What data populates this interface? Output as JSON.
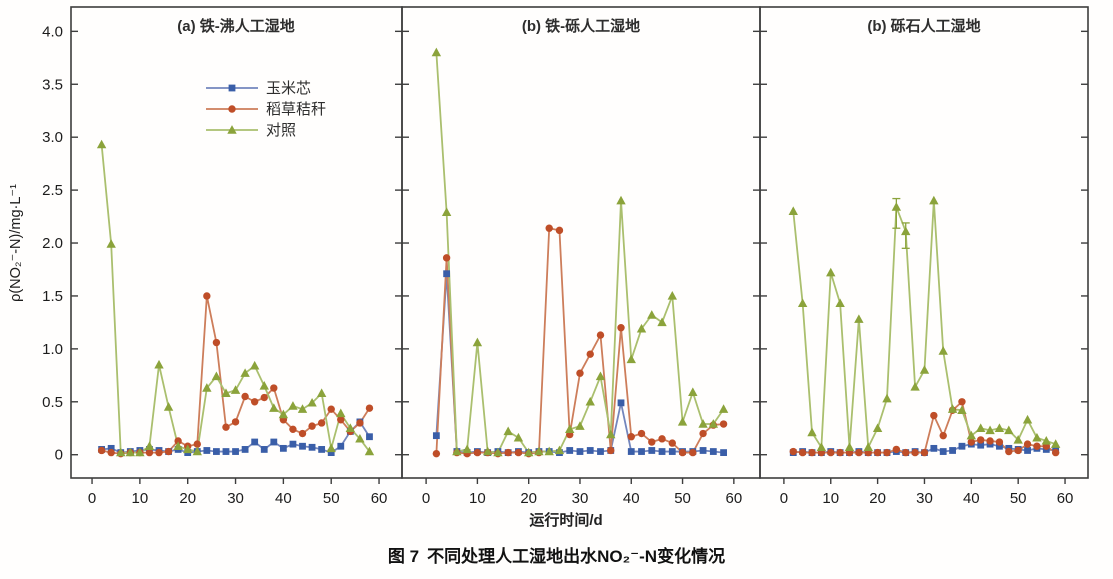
{
  "figure": {
    "x_axis_label": "运行时间/d",
    "y_axis_label": "ρ(NO₂⁻-N)/mg·L⁻¹",
    "caption": {
      "prefix": "图 7",
      "text": "不同处理人工湿地出水NO₂⁻-N变化情况",
      "prefix_color": "#4e7d3a"
    }
  },
  "legend": {
    "position": "inside-panel-a-top",
    "items": [
      {
        "label": "玉米芯",
        "marker": "square",
        "marker_color": "#3a5ea8",
        "line_color": "#7386bd"
      },
      {
        "label": "稻草秸秆",
        "marker": "circle",
        "marker_color": "#bf4e28",
        "line_color": "#cd7d5a"
      },
      {
        "label": "对照",
        "marker": "triangle",
        "marker_color": "#8ba33b",
        "line_color": "#aabf6e"
      }
    ]
  },
  "chart_data": [
    {
      "type": "line",
      "title": "(a) 铁-沸人工湿地",
      "xlabel": "运行时间/d",
      "ylabel": "ρ(NO₂⁻-N)/mg·L⁻¹",
      "xlim": [
        -4.4,
        64.8
      ],
      "ylim": [
        -0.22,
        4.23
      ],
      "x_ticks": [
        0,
        10,
        20,
        30,
        40,
        50,
        60
      ],
      "y_ticks": [
        0,
        0.5,
        1.0,
        1.5,
        2.0,
        2.5,
        3.0,
        3.5,
        4.0
      ],
      "grid": false,
      "x_days": [
        2,
        4,
        6,
        8,
        10,
        12,
        14,
        16,
        18,
        20,
        22,
        24,
        26,
        28,
        30,
        32,
        34,
        36,
        38,
        40,
        42,
        44,
        46,
        48,
        50,
        52,
        54,
        56,
        58
      ],
      "series": [
        {
          "name": "玉米芯",
          "marker": "square",
          "marker_color": "#3a5ea8",
          "line_color": "#7386bd",
          "values": [
            0.05,
            0.06,
            0.02,
            0.03,
            0.04,
            0.05,
            0.04,
            0.03,
            0.05,
            0.02,
            0.03,
            0.04,
            0.03,
            0.03,
            0.03,
            0.05,
            0.12,
            0.05,
            0.12,
            0.06,
            0.1,
            0.08,
            0.07,
            0.05,
            0.02,
            0.08,
            0.22,
            0.31,
            0.17
          ]
        },
        {
          "name": "稻草秸秆",
          "marker": "circle",
          "marker_color": "#bf4e28",
          "line_color": "#cd7d5a",
          "values": [
            0.04,
            0.02,
            0.01,
            0.02,
            0.02,
            0.02,
            0.02,
            0.03,
            0.13,
            0.08,
            0.1,
            1.5,
            1.06,
            0.26,
            0.31,
            0.55,
            0.5,
            0.54,
            0.63,
            0.33,
            0.24,
            0.2,
            0.27,
            0.3,
            0.43,
            0.33,
            0.22,
            0.3,
            0.44
          ]
        },
        {
          "name": "对照",
          "marker": "triangle",
          "marker_color": "#8ba33b",
          "line_color": "#aabf6e",
          "values": [
            2.93,
            1.99,
            0.02,
            0.02,
            0.02,
            0.08,
            0.85,
            0.45,
            0.08,
            0.05,
            0.03,
            0.63,
            0.74,
            0.58,
            0.61,
            0.77,
            0.84,
            0.65,
            0.44,
            0.38,
            0.46,
            0.43,
            0.49,
            0.58,
            0.06,
            0.39,
            0.25,
            0.15,
            0.03
          ]
        }
      ]
    },
    {
      "type": "line",
      "title": "(b) 铁-砾人工湿地",
      "xlabel": "运行时间/d",
      "ylabel": "ρ(NO₂⁻-N)/mg·L⁻¹",
      "xlim": [
        -4.7,
        65.1
      ],
      "ylim": [
        -0.22,
        4.23
      ],
      "x_ticks": [
        0,
        10,
        20,
        30,
        40,
        50,
        60
      ],
      "y_ticks": [
        0,
        0.5,
        1.0,
        1.5,
        2.0,
        2.5,
        3.0,
        3.5,
        4.0
      ],
      "grid": false,
      "x_days": [
        2,
        4,
        6,
        8,
        10,
        12,
        14,
        16,
        18,
        20,
        22,
        24,
        26,
        28,
        30,
        32,
        34,
        36,
        38,
        40,
        42,
        44,
        46,
        48,
        50,
        52,
        54,
        56,
        58
      ],
      "series": [
        {
          "name": "玉米芯",
          "marker": "square",
          "marker_color": "#3a5ea8",
          "line_color": "#7386bd",
          "values": [
            0.18,
            1.71,
            0.03,
            0.02,
            0.03,
            0.02,
            0.03,
            0.02,
            0.03,
            0.02,
            0.03,
            0.03,
            0.02,
            0.04,
            0.03,
            0.04,
            0.03,
            0.04,
            0.49,
            0.03,
            0.03,
            0.04,
            0.03,
            0.03,
            0.03,
            0.03,
            0.04,
            0.03,
            0.02
          ]
        },
        {
          "name": "稻草秸秆",
          "marker": "circle",
          "marker_color": "#bf4e28",
          "line_color": "#cd7d5a",
          "values": [
            0.01,
            1.86,
            0.02,
            0.01,
            0.02,
            0.02,
            0.01,
            0.02,
            0.02,
            0.01,
            0.02,
            2.14,
            2.12,
            0.19,
            0.77,
            0.95,
            1.13,
            0.04,
            1.2,
            0.17,
            0.2,
            0.12,
            0.15,
            0.11,
            0.02,
            0.02,
            0.2,
            0.28,
            0.29
          ]
        },
        {
          "name": "对照",
          "marker": "triangle",
          "marker_color": "#8ba33b",
          "line_color": "#aabf6e",
          "values": [
            3.8,
            2.29,
            0.03,
            0.05,
            1.06,
            0.03,
            0.02,
            0.22,
            0.16,
            0.02,
            0.03,
            0.03,
            0.04,
            0.24,
            0.27,
            0.5,
            0.74,
            0.19,
            2.4,
            0.9,
            1.19,
            1.32,
            1.25,
            1.5,
            0.31,
            0.59,
            0.29,
            0.29,
            0.43
          ]
        }
      ]
    },
    {
      "type": "line",
      "title": "(b) 砾石人工湿地",
      "xlabel": "运行时间/d",
      "ylabel": "ρ(NO₂⁻-N)/mg·L⁻¹",
      "xlim": [
        -5.1,
        64.9
      ],
      "ylim": [
        -0.22,
        4.23
      ],
      "x_ticks": [
        0,
        10,
        20,
        30,
        40,
        50,
        60
      ],
      "y_ticks": [
        0,
        0.5,
        1.0,
        1.5,
        2.0,
        2.5,
        3.0,
        3.5,
        4.0
      ],
      "grid": false,
      "x_days": [
        2,
        4,
        6,
        8,
        10,
        12,
        14,
        16,
        18,
        20,
        22,
        24,
        26,
        28,
        30,
        32,
        34,
        36,
        38,
        40,
        42,
        44,
        46,
        48,
        50,
        52,
        54,
        56,
        58
      ],
      "series": [
        {
          "name": "玉米芯",
          "marker": "square",
          "marker_color": "#3a5ea8",
          "line_color": "#7386bd",
          "values": [
            0.02,
            0.03,
            0.02,
            0.02,
            0.03,
            0.02,
            0.02,
            0.03,
            0.02,
            0.02,
            0.02,
            0.03,
            0.02,
            0.03,
            0.02,
            0.06,
            0.03,
            0.04,
            0.08,
            0.1,
            0.09,
            0.1,
            0.08,
            0.06,
            0.05,
            0.04,
            0.06,
            0.05,
            0.04
          ]
        },
        {
          "name": "稻草秸秆",
          "marker": "circle",
          "marker_color": "#bf4e28",
          "line_color": "#cd7d5a",
          "values": [
            0.03,
            0.02,
            0.02,
            0.02,
            0.02,
            0.02,
            0.02,
            0.02,
            0.02,
            0.02,
            0.02,
            0.05,
            0.02,
            0.02,
            0.02,
            0.37,
            0.18,
            0.42,
            0.5,
            0.12,
            0.14,
            0.13,
            0.12,
            0.03,
            0.04,
            0.1,
            0.08,
            0.08,
            0.02
          ]
        },
        {
          "name": "对照",
          "marker": "triangle",
          "marker_color": "#8ba33b",
          "line_color": "#aabf6e",
          "values": [
            2.3,
            1.43,
            0.21,
            0.07,
            1.72,
            1.43,
            0.07,
            1.28,
            0.07,
            0.25,
            0.53,
            2.34,
            2.11,
            0.64,
            0.8,
            2.4,
            0.98,
            0.43,
            0.42,
            0.18,
            0.25,
            0.23,
            0.25,
            0.23,
            0.14,
            0.33,
            0.16,
            0.13,
            0.1
          ]
        }
      ],
      "error_bars": [
        {
          "series": "对照",
          "series_index": 2,
          "day": 24,
          "value": 2.34,
          "plus": 0.08,
          "minus": 0.2
        },
        {
          "series": "对照",
          "series_index": 2,
          "day": 26,
          "value": 2.11,
          "plus": 0.08,
          "minus": 0.16
        }
      ]
    }
  ]
}
